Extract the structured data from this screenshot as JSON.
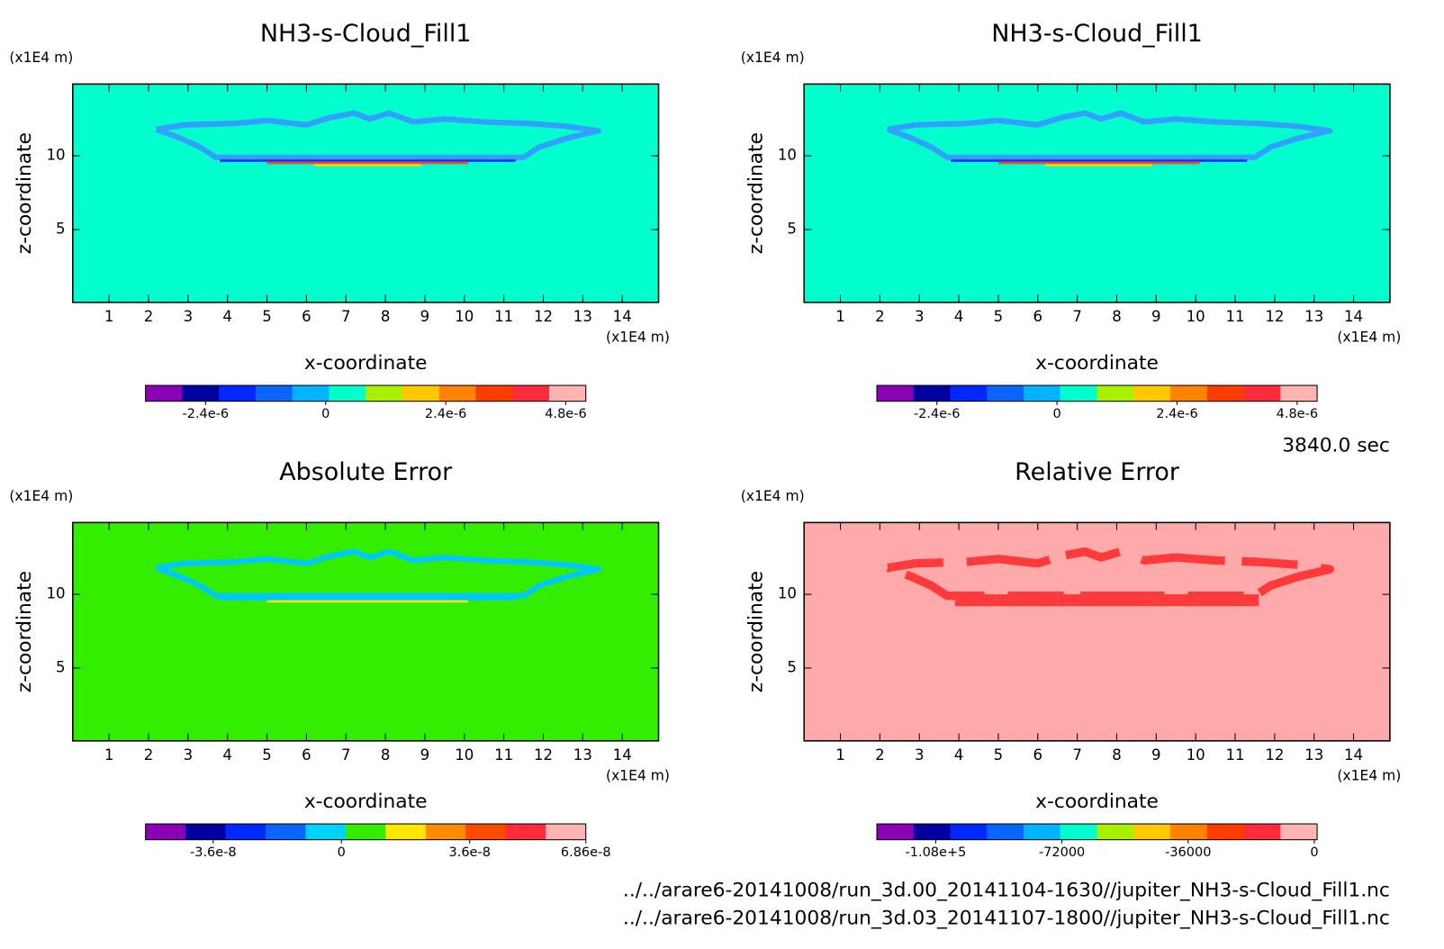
{
  "chart_data": [
    {
      "type": "contour",
      "title": "NH3-s-Cloud_Fill1",
      "y_unit": "(x1E4 m)",
      "y_label": "z-coordinate",
      "x_unit": "(x1E4 m)",
      "x_label": "x-coordinate",
      "xlim": [
        0.08,
        14.92
      ],
      "ylim": [
        0.06,
        14.87
      ],
      "xticks": [
        1,
        2,
        3,
        4,
        5,
        6,
        7,
        8,
        9,
        10,
        11,
        12,
        13,
        14
      ],
      "yticks": [
        5,
        10
      ],
      "field_color": "#00ffcc",
      "feature_style": "outline",
      "feature_colors": [
        "#33a0ff",
        "#1a2cff",
        "#ff4a1a",
        "#ffd400"
      ],
      "colorbar": {
        "colors": [
          "#8a00b4",
          "#0000a0",
          "#0028ff",
          "#0a64ff",
          "#00b4ff",
          "#00ffcc",
          "#a8f000",
          "#ffc800",
          "#ff8200",
          "#ff3c00",
          "#ff2a3a",
          "#ffb4b4"
        ],
        "clim": [
          -3.6e-06,
          5.2e-06
        ],
        "ticks": [
          {
            "value": -2.4e-06,
            "label": "-2.4e-6"
          },
          0,
          {
            "value": 2.4e-06,
            "label": "2.4e-6"
          },
          {
            "value": 4.8e-06,
            "label": "4.8e-6"
          }
        ]
      }
    },
    {
      "type": "contour",
      "title": "NH3-s-Cloud_Fill1",
      "y_unit": "(x1E4 m)",
      "y_label": "z-coordinate",
      "x_unit": "(x1E4 m)",
      "x_label": "x-coordinate",
      "xlim": [
        0.08,
        14.92
      ],
      "ylim": [
        0.06,
        14.87
      ],
      "xticks": [
        1,
        2,
        3,
        4,
        5,
        6,
        7,
        8,
        9,
        10,
        11,
        12,
        13,
        14
      ],
      "yticks": [
        5,
        10
      ],
      "field_color": "#00ffcc",
      "feature_style": "outline",
      "feature_colors": [
        "#33a0ff",
        "#1a2cff",
        "#ff4a1a",
        "#ffd400"
      ],
      "colorbar": {
        "colors": [
          "#8a00b4",
          "#0000a0",
          "#0028ff",
          "#0a64ff",
          "#00b4ff",
          "#00ffcc",
          "#a8f000",
          "#ffc800",
          "#ff8200",
          "#ff3c00",
          "#ff2a3a",
          "#ffb4b4"
        ],
        "clim": [
          -3.6e-06,
          5.2e-06
        ],
        "ticks": [
          {
            "value": -2.4e-06,
            "label": "-2.4e-6"
          },
          0,
          {
            "value": 2.4e-06,
            "label": "2.4e-6"
          },
          {
            "value": 4.8e-06,
            "label": "4.8e-6"
          }
        ]
      }
    },
    {
      "type": "contour",
      "title": "Absolute Error",
      "y_unit": "(x1E4 m)",
      "y_label": "z-coordinate",
      "x_unit": "(x1E4 m)",
      "x_label": "x-coordinate",
      "xlim": [
        0.08,
        14.92
      ],
      "ylim": [
        0.06,
        14.87
      ],
      "xticks": [
        1,
        2,
        3,
        4,
        5,
        6,
        7,
        8,
        9,
        10,
        11,
        12,
        13,
        14
      ],
      "yticks": [
        5,
        10
      ],
      "field_color": "#33ee00",
      "feature_style": "outline",
      "feature_colors": [
        "#00c8ff",
        "#00c8ff",
        "#ffe600"
      ],
      "colorbar": {
        "colors": [
          "#8a00b4",
          "#0000a0",
          "#0028ff",
          "#0a64ff",
          "#00d2ff",
          "#33ee00",
          "#ffe600",
          "#ff8c00",
          "#ff4a00",
          "#ff2a3a",
          "#ffb4b4"
        ],
        "clim": [
          -5.5e-08,
          6.86e-08
        ],
        "ticks": [
          {
            "value": -3.6e-08,
            "label": "-3.6e-8"
          },
          0,
          {
            "value": 3.6e-08,
            "label": "3.6e-8"
          },
          {
            "value": 6.86e-08,
            "label": "6.86e-8"
          }
        ]
      }
    },
    {
      "type": "contour",
      "title": "Relative Error",
      "y_unit": "(x1E4 m)",
      "y_label": "z-coordinate",
      "x_unit": "(x1E4 m)",
      "x_label": "x-coordinate",
      "xlim": [
        0.08,
        14.92
      ],
      "ylim": [
        0.06,
        14.87
      ],
      "xticks": [
        1,
        2,
        3,
        4,
        5,
        6,
        7,
        8,
        9,
        10,
        11,
        12,
        13,
        14
      ],
      "yticks": [
        5,
        10
      ],
      "field_color": "#ffaaaa",
      "feature_style": "patches",
      "feature_colors": [
        "#ff3a3a",
        "#ff3a3a"
      ],
      "colorbar": {
        "colors": [
          "#8a00b4",
          "#0000a0",
          "#0028ff",
          "#0a64ff",
          "#00b4ff",
          "#00ffcc",
          "#a8f000",
          "#ffc800",
          "#ff8200",
          "#ff3c00",
          "#ff2a3a",
          "#ffb4b4"
        ],
        "clim": [
          -124800,
          800
        ],
        "ticks": [
          {
            "value": -108000,
            "label": "-1.08e+5"
          },
          -72000,
          -36000,
          0
        ]
      }
    }
  ],
  "annotations": {
    "time": "3840.0 sec",
    "files": [
      "../../arare6-20141008/run_3d.00_20141104-1630//jupiter_NH3-s-Cloud_Fill1.nc",
      "../../arare6-20141008/run_3d.03_20141107-1800//jupiter_NH3-s-Cloud_Fill1.nc"
    ]
  }
}
